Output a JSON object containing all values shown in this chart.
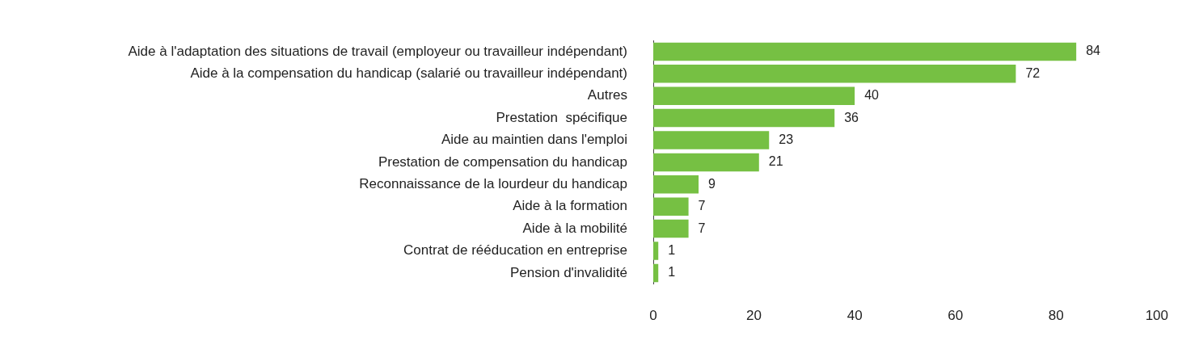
{
  "chart_data": {
    "type": "bar",
    "orientation": "horizontal",
    "categories": [
      "Aide à l'adaptation des situations de travail (employeur ou travailleur indépendant)",
      "Aide à la compensation du handicap (salarié ou travailleur indépendant)",
      "Autres",
      "Prestation  spécifique",
      "Aide au maintien dans l'emploi",
      "Prestation de compensation du handicap",
      "Reconnaissance de la lourdeur du handicap",
      "Aide à la formation",
      "Aide à la mobilité",
      "Contrat de rééducation en entreprise",
      "Pension d'invalidité"
    ],
    "values": [
      84,
      72,
      40,
      36,
      23,
      21,
      9,
      7,
      7,
      1,
      1
    ],
    "color": "#76c043",
    "xlim": [
      0,
      100
    ],
    "xticks": [
      0,
      20,
      40,
      60,
      80,
      100
    ],
    "data_labels": true,
    "grid": false,
    "legend": false
  }
}
